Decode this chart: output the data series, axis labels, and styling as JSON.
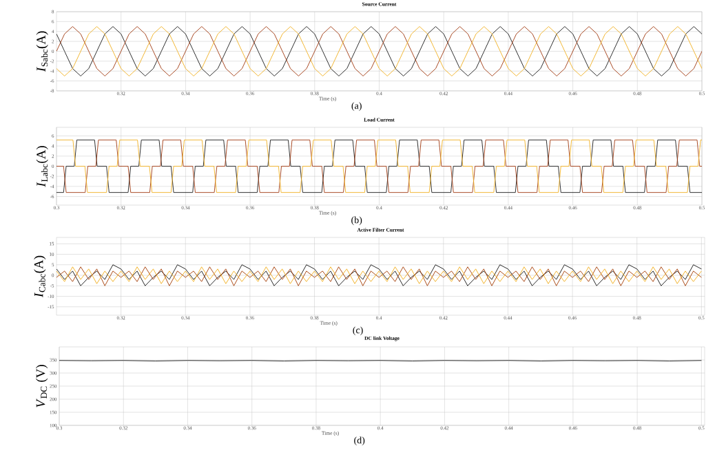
{
  "chart_data": [
    {
      "type": "line",
      "title": "Source Current",
      "xlabel": "Time (s)",
      "ylabel": "*I*$_{Sabc}$(A)",
      "annotations": [
        "(a)"
      ],
      "grid": true,
      "xlim": [
        0.3,
        0.5
      ],
      "ylim": [
        -8,
        8
      ],
      "xticks": [
        0.32,
        0.34,
        0.36,
        0.38,
        0.4,
        0.42,
        0.44,
        0.46,
        0.48,
        0.5
      ],
      "yticks": [
        -8,
        -6,
        -4,
        -2,
        0,
        2,
        4,
        6,
        8
      ],
      "x": [
        0.3,
        0.3025,
        0.305,
        0.3075,
        0.31,
        0.3125,
        0.315,
        0.3175,
        0.32,
        0.3225,
        0.325,
        0.3275,
        0.33,
        0.3325,
        0.335,
        0.3375,
        0.34,
        0.3425,
        0.345,
        0.3475,
        0.35,
        0.3525,
        0.355,
        0.3575,
        0.36,
        0.3625,
        0.365,
        0.3675,
        0.37,
        0.3725,
        0.375,
        0.3775,
        0.38,
        0.3825,
        0.385,
        0.3875,
        0.39,
        0.3925,
        0.395,
        0.3975,
        0.4,
        0.4025,
        0.405,
        0.4075,
        0.41,
        0.4125,
        0.415,
        0.4175,
        0.42,
        0.4225,
        0.425,
        0.4275,
        0.43,
        0.4325,
        0.435,
        0.4375,
        0.44,
        0.4425,
        0.445,
        0.4475,
        0.45,
        0.4525,
        0.455,
        0.4575,
        0.46,
        0.4625,
        0.465,
        0.4675,
        0.47,
        0.4725,
        0.475,
        0.4775,
        0.48,
        0.4825,
        0.485,
        0.4875,
        0.49,
        0.4925,
        0.495,
        0.4975,
        0.5
      ],
      "series": [
        {
          "color": "#1a1a1a",
          "values": [
            3.5,
            0,
            -3.5,
            -5,
            -3.5,
            0,
            3.5,
            5,
            3.5,
            0,
            -3.5,
            -5,
            -3.5,
            0,
            3.5,
            5,
            3.5,
            0,
            -3.5,
            -5,
            -3.5,
            0,
            3.5,
            5,
            3.5,
            0,
            -3.5,
            -5,
            -3.5,
            0,
            3.5,
            5,
            3.5,
            0,
            -3.5,
            -5,
            -3.5,
            0,
            3.5,
            5,
            3.5,
            0,
            -3.5,
            -5,
            -3.5,
            0,
            3.5,
            5,
            3.5,
            0,
            -3.5,
            -5,
            -3.5,
            0,
            3.5,
            5,
            3.5,
            0,
            -3.5,
            -5,
            -3.5,
            0,
            3.5,
            5,
            3.5,
            0,
            -3.5,
            -5,
            -3.5,
            0,
            3.5,
            5,
            3.5,
            0,
            -3.5,
            -5,
            -3.5,
            0,
            3.5,
            5,
            3.5
          ]
        },
        {
          "color": "#a0380e",
          "values": [
            0,
            3.5,
            5,
            3.5,
            0,
            -3.5,
            -5,
            -3.5,
            0,
            3.5,
            5,
            3.5,
            0,
            -3.5,
            -5,
            -3.5,
            0,
            3.5,
            5,
            3.5,
            0,
            -3.5,
            -5,
            -3.5,
            0,
            3.5,
            5,
            3.5,
            0,
            -3.5,
            -5,
            -3.5,
            0,
            3.5,
            5,
            3.5,
            0,
            -3.5,
            -5,
            -3.5,
            0,
            3.5,
            5,
            3.5,
            0,
            -3.5,
            -5,
            -3.5,
            0,
            3.5,
            5,
            3.5,
            0,
            -3.5,
            -5,
            -3.5,
            0,
            3.5,
            5,
            3.5,
            0,
            -3.5,
            -5,
            -3.5,
            0,
            3.5,
            5,
            3.5,
            0,
            -3.5,
            -5,
            -3.5,
            0,
            3.5,
            5,
            3.5,
            0,
            -3.5,
            -5,
            -3.5,
            0
          ]
        },
        {
          "color": "#f0b020",
          "values": [
            -3.5,
            -5,
            -3.5,
            0,
            3.5,
            5,
            3.5,
            0,
            -3.5,
            -5,
            -3.5,
            0,
            3.5,
            5,
            3.5,
            0,
            -3.5,
            -5,
            -3.5,
            0,
            3.5,
            5,
            3.5,
            0,
            -3.5,
            -5,
            -3.5,
            0,
            3.5,
            5,
            3.5,
            0,
            -3.5,
            -5,
            -3.5,
            0,
            3.5,
            5,
            3.5,
            0,
            -3.5,
            -5,
            -3.5,
            0,
            3.5,
            5,
            3.5,
            0,
            -3.5,
            -5,
            -3.5,
            0,
            3.5,
            5,
            3.5,
            0,
            -3.5,
            -5,
            -3.5,
            0,
            3.5,
            5,
            3.5,
            0,
            -3.5,
            -5,
            -3.5,
            0,
            3.5,
            5,
            3.5,
            0,
            -3.5,
            -5,
            -3.5,
            0,
            3.5,
            5,
            3.5,
            0,
            -3.5
          ]
        }
      ]
    },
    {
      "type": "line",
      "title": "Load Current",
      "xlabel": "Time (s)",
      "ylabel": "*I*$_{Labc}$(A)",
      "annotations": [
        "(b)"
      ],
      "grid": true,
      "xlim": [
        0.3,
        0.5
      ],
      "ylim": [
        -7.7,
        7.7
      ],
      "xticks": [
        0.3,
        0.32,
        0.34,
        0.36,
        0.38,
        0.4,
        0.42,
        0.44,
        0.46,
        0.48,
        0.5
      ],
      "yticks": [
        -6,
        -4,
        -2,
        0,
        2,
        4,
        6
      ],
      "series": [
        {
          "color": "#1a1a1a",
          "x": [
            0.3,
            0.3022,
            0.303,
            0.3055,
            0.3063,
            0.3118,
            0.3126,
            0.3155,
            0.3163,
            0.3222,
            0.323,
            0.3255,
            0.3263,
            0.3318,
            0.3326,
            0.3355,
            0.3363,
            0.3422,
            0.343,
            0.3455,
            0.3463,
            0.3518,
            0.3526,
            0.3555,
            0.3563,
            0.3622,
            0.363,
            0.3655,
            0.3663,
            0.3718,
            0.3726,
            0.3755,
            0.3763,
            0.3822,
            0.383,
            0.3855,
            0.3863,
            0.3918,
            0.3926,
            0.3955,
            0.3963,
            0.4022,
            0.403,
            0.4055,
            0.4063,
            0.4118,
            0.4126,
            0.4155,
            0.4163,
            0.4222,
            0.423,
            0.4255,
            0.4263,
            0.4318,
            0.4326,
            0.4355,
            0.4363,
            0.4422,
            0.443,
            0.4455,
            0.4463,
            0.4518,
            0.4526,
            0.4555,
            0.4563,
            0.4622,
            0.463,
            0.4655,
            0.4663,
            0.4718,
            0.4726,
            0.4755,
            0.4763,
            0.4822,
            0.483,
            0.4855,
            0.4863,
            0.4918,
            0.4926,
            0.4955,
            0.4963,
            0.5
          ],
          "values": [
            -5.2,
            -5.2,
            0,
            0,
            5.2,
            5.2,
            0,
            0,
            -5.2,
            -5.2,
            0,
            0,
            5.2,
            5.2,
            0,
            0,
            -5.2,
            -5.2,
            0,
            0,
            5.2,
            5.2,
            0,
            0,
            -5.2,
            -5.2,
            0,
            0,
            5.2,
            5.2,
            0,
            0,
            -5.2,
            -5.2,
            0,
            0,
            5.2,
            5.2,
            0,
            0,
            -5.2,
            -5.2,
            0,
            0,
            5.2,
            5.2,
            0,
            0,
            -5.2,
            -5.2,
            0,
            0,
            5.2,
            5.2,
            0,
            0,
            -5.2,
            -5.2,
            0,
            0,
            5.2,
            5.2,
            0,
            0,
            -5.2,
            -5.2,
            0,
            0,
            5.2,
            5.2,
            0,
            0,
            -5.2,
            -5.2,
            0,
            0,
            5.2,
            5.2,
            0,
            0,
            -5.2,
            -5.2
          ]
        },
        {
          "color": "#a0380e",
          "x": [
            0.3,
            0.3022,
            0.303,
            0.3089,
            0.3097,
            0.3122,
            0.313,
            0.3185,
            0.3193,
            0.3222,
            0.323,
            0.3289,
            0.3297,
            0.3322,
            0.333,
            0.3385,
            0.3393,
            0.3422,
            0.343,
            0.3489,
            0.3497,
            0.3522,
            0.353,
            0.3585,
            0.3593,
            0.3622,
            0.363,
            0.3689,
            0.3697,
            0.3722,
            0.373,
            0.3785,
            0.3793,
            0.3822,
            0.383,
            0.3889,
            0.3897,
            0.3922,
            0.393,
            0.3985,
            0.3993,
            0.4022,
            0.403,
            0.4089,
            0.4097,
            0.4122,
            0.413,
            0.4185,
            0.4193,
            0.4222,
            0.423,
            0.4289,
            0.4297,
            0.4322,
            0.433,
            0.4385,
            0.4393,
            0.4422,
            0.443,
            0.4489,
            0.4497,
            0.4522,
            0.453,
            0.4585,
            0.4593,
            0.4622,
            0.463,
            0.4689,
            0.4697,
            0.4722,
            0.473,
            0.4785,
            0.4793,
            0.4822,
            0.483,
            0.4889,
            0.4897,
            0.4922,
            0.493,
            0.4985,
            0.4993,
            0.5
          ],
          "values": [
            0,
            0,
            -5.2,
            -5.2,
            0,
            0,
            5.2,
            5.2,
            0,
            0,
            -5.2,
            -5.2,
            0,
            0,
            5.2,
            5.2,
            0,
            0,
            -5.2,
            -5.2,
            0,
            0,
            5.2,
            5.2,
            0,
            0,
            -5.2,
            -5.2,
            0,
            0,
            5.2,
            5.2,
            0,
            0,
            -5.2,
            -5.2,
            0,
            0,
            5.2,
            5.2,
            0,
            0,
            -5.2,
            -5.2,
            0,
            0,
            5.2,
            5.2,
            0,
            0,
            -5.2,
            -5.2,
            0,
            0,
            5.2,
            5.2,
            0,
            0,
            -5.2,
            -5.2,
            0,
            0,
            5.2,
            5.2,
            0,
            0,
            -5.2,
            -5.2,
            0,
            0,
            5.2,
            5.2,
            0,
            0,
            -5.2,
            -5.2,
            0,
            0,
            5.2,
            5.2,
            0,
            0
          ]
        },
        {
          "color": "#f0b020",
          "x": [
            0.3,
            0.3051,
            0.3059,
            0.3088,
            0.3096,
            0.3155,
            0.3163,
            0.3188,
            0.3196,
            0.3251,
            0.3259,
            0.3288,
            0.3296,
            0.3355,
            0.3363,
            0.3388,
            0.3396,
            0.3451,
            0.3459,
            0.3488,
            0.3496,
            0.3555,
            0.3563,
            0.3588,
            0.3596,
            0.3651,
            0.3659,
            0.3688,
            0.3696,
            0.3755,
            0.3763,
            0.3788,
            0.3796,
            0.3851,
            0.3859,
            0.3888,
            0.3896,
            0.3955,
            0.3963,
            0.3988,
            0.3996,
            0.4051,
            0.4059,
            0.4088,
            0.4096,
            0.4155,
            0.4163,
            0.4188,
            0.4196,
            0.4251,
            0.4259,
            0.4288,
            0.4296,
            0.4355,
            0.4363,
            0.4388,
            0.4396,
            0.4451,
            0.4459,
            0.4488,
            0.4496,
            0.4555,
            0.4563,
            0.4588,
            0.4596,
            0.4651,
            0.4659,
            0.4688,
            0.4696,
            0.4755,
            0.4763,
            0.4788,
            0.4796,
            0.4851,
            0.4859,
            0.4888,
            0.4896,
            0.4955,
            0.4963,
            0.4988,
            0.4996,
            0.5
          ],
          "values": [
            5.2,
            5.2,
            0,
            0,
            -5.2,
            -5.2,
            0,
            0,
            5.2,
            5.2,
            0,
            0,
            -5.2,
            -5.2,
            0,
            0,
            5.2,
            5.2,
            0,
            0,
            -5.2,
            -5.2,
            0,
            0,
            5.2,
            5.2,
            0,
            0,
            -5.2,
            -5.2,
            0,
            0,
            5.2,
            5.2,
            0,
            0,
            -5.2,
            -5.2,
            0,
            0,
            5.2,
            5.2,
            0,
            0,
            -5.2,
            -5.2,
            0,
            0,
            5.2,
            5.2,
            0,
            0,
            -5.2,
            -5.2,
            0,
            0,
            5.2,
            5.2,
            0,
            0,
            -5.2,
            -5.2,
            0,
            0,
            5.2,
            5.2,
            0,
            0,
            -5.2,
            -5.2,
            0,
            0,
            5.2,
            5.2,
            0,
            0,
            -5.2,
            -5.2,
            0,
            0,
            5.2,
            5.2
          ]
        }
      ]
    },
    {
      "type": "line",
      "title": "Active Filter Current",
      "xlabel": "Time (s)",
      "ylabel": "*I*$_{Cabc}$(A)",
      "annotations": [
        "(c)"
      ],
      "grid": true,
      "xlim": [
        0.3,
        0.501
      ],
      "ylim": [
        -19,
        18
      ],
      "xticks": [
        0.32,
        0.34,
        0.36,
        0.38,
        0.4,
        0.42,
        0.44,
        0.46,
        0.48,
        0.5
      ],
      "yticks": [
        -15,
        -10,
        -5,
        0,
        5,
        10,
        15
      ],
      "x": [
        0.3,
        0.3025,
        0.305,
        0.3075,
        0.31,
        0.3125,
        0.315,
        0.3175,
        0.32,
        0.3225,
        0.325,
        0.3275,
        0.33,
        0.3325,
        0.335,
        0.3375,
        0.34,
        0.3425,
        0.345,
        0.3475,
        0.35,
        0.3525,
        0.355,
        0.3575,
        0.36,
        0.3625,
        0.365,
        0.3675,
        0.37,
        0.3725,
        0.375,
        0.3775,
        0.38,
        0.3825,
        0.385,
        0.3875,
        0.39,
        0.3925,
        0.395,
        0.3975,
        0.4,
        0.4025,
        0.405,
        0.4075,
        0.41,
        0.4125,
        0.415,
        0.4175,
        0.42,
        0.4225,
        0.425,
        0.4275,
        0.43,
        0.4325,
        0.435,
        0.4375,
        0.44,
        0.4425,
        0.445,
        0.4475,
        0.45,
        0.4525,
        0.455,
        0.4575,
        0.46,
        0.4625,
        0.465,
        0.4675,
        0.47,
        0.4725,
        0.475,
        0.4775,
        0.48,
        0.4825,
        0.485,
        0.4875,
        0.49,
        0.4925,
        0.495,
        0.4975,
        0.5
      ],
      "series": [
        {
          "color": "#111111",
          "values": [
            3,
            -2,
            2,
            -5,
            -1,
            2,
            -2,
            5,
            3,
            -2,
            2,
            -5,
            -1,
            2,
            -2,
            5,
            3,
            -2,
            2,
            -5,
            -1,
            2,
            -2,
            5,
            3,
            -2,
            2,
            -5,
            -1,
            2,
            -2,
            5,
            3,
            -2,
            2,
            -5,
            -1,
            2,
            -2,
            5,
            3,
            -2,
            2,
            -5,
            -1,
            2,
            -2,
            5,
            3,
            -2,
            2,
            -5,
            -1,
            2,
            -2,
            5,
            3,
            -2,
            2,
            -5,
            -1,
            2,
            -2,
            5,
            3,
            -2,
            2,
            -5,
            -1,
            2,
            -2,
            5,
            3,
            -2,
            2,
            -5,
            -1,
            2,
            -2,
            5,
            3
          ]
        },
        {
          "color": "#a33a00",
          "values": [
            -1,
            2,
            -3,
            4,
            -2,
            3,
            -5,
            2,
            -1,
            2,
            -3,
            4,
            -2,
            3,
            -5,
            2,
            -1,
            2,
            -3,
            4,
            -2,
            3,
            -5,
            2,
            -1,
            2,
            -3,
            4,
            -2,
            3,
            -5,
            2,
            -1,
            2,
            -3,
            4,
            -2,
            3,
            -5,
            2,
            -1,
            2,
            -3,
            4,
            -2,
            3,
            -5,
            2,
            -1,
            2,
            -3,
            4,
            -2,
            3,
            -5,
            2,
            -1,
            2,
            -3,
            4,
            -2,
            3,
            -5,
            2,
            -1,
            2,
            -3,
            4,
            -2,
            3,
            -5,
            2,
            -1,
            2,
            -3,
            4,
            -2,
            3,
            -5,
            2,
            -1
          ]
        },
        {
          "color": "#f0ac1a",
          "values": [
            2,
            -3,
            4,
            -2,
            3,
            -4,
            2,
            -3,
            2,
            -3,
            4,
            -2,
            3,
            -4,
            2,
            -3,
            2,
            -3,
            4,
            -2,
            3,
            -4,
            2,
            -3,
            2,
            -3,
            4,
            -2,
            3,
            -4,
            2,
            -3,
            2,
            -3,
            4,
            -2,
            3,
            -4,
            2,
            -3,
            2,
            -3,
            4,
            -2,
            3,
            -4,
            2,
            -3,
            2,
            -3,
            4,
            -2,
            3,
            -4,
            2,
            -3,
            2,
            -3,
            4,
            -2,
            3,
            -4,
            2,
            -3,
            2,
            -3,
            4,
            -2,
            3,
            -4,
            2,
            -3,
            2,
            -3,
            4,
            -2,
            3,
            -4,
            2,
            -3,
            2
          ]
        }
      ]
    },
    {
      "type": "line",
      "title": "DC link Voltage",
      "xlabel": "Time (s)",
      "ylabel": "*V*$_{DC}$ (V)",
      "annotations": [
        "(d)"
      ],
      "grid": true,
      "xlim": [
        0.3,
        0.501
      ],
      "ylim": [
        100,
        400
      ],
      "xticks": [
        0.3,
        0.32,
        0.34,
        0.36,
        0.38,
        0.4,
        0.42,
        0.44,
        0.46,
        0.48,
        0.5
      ],
      "yticks": [
        100,
        150,
        200,
        250,
        300,
        350
      ],
      "x": [
        0.3,
        0.31,
        0.32,
        0.33,
        0.34,
        0.35,
        0.36,
        0.37,
        0.38,
        0.39,
        0.4,
        0.41,
        0.42,
        0.43,
        0.44,
        0.45,
        0.46,
        0.47,
        0.48,
        0.49,
        0.5
      ],
      "series": [
        {
          "color": "#111111",
          "values": [
            348,
            347,
            348,
            346,
            348,
            347,
            348,
            346,
            348,
            347,
            348,
            346,
            348,
            347,
            348,
            346,
            348,
            347,
            348,
            346,
            348
          ]
        }
      ]
    }
  ]
}
